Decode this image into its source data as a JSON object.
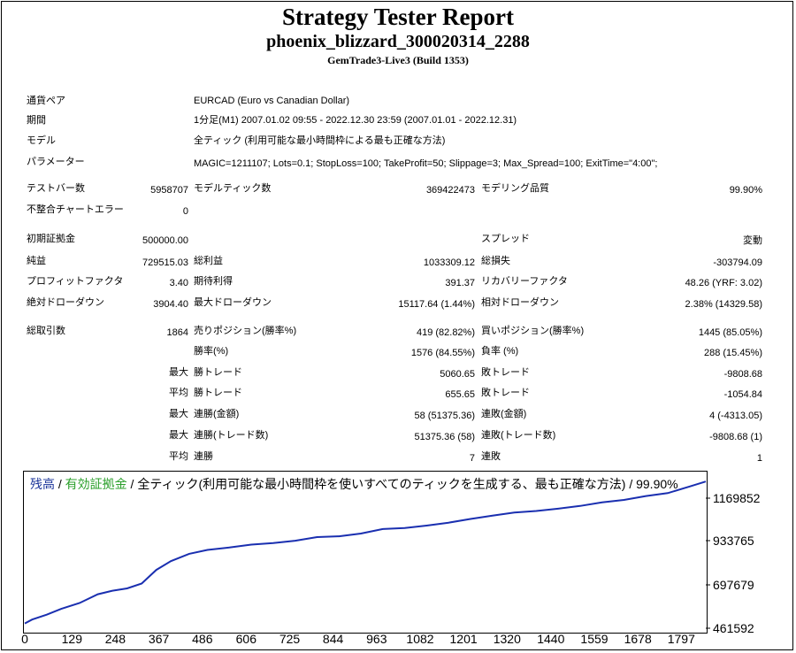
{
  "header": {
    "title": "Strategy Tester Report",
    "ea_name": "phoenix_blizzard_300020314_2288",
    "server": "GemTrade3-Live3 (Build 1353)"
  },
  "info": {
    "symbol_label": "通貨ペア",
    "symbol_value": "EURCAD (Euro vs Canadian Dollar)",
    "period_label": "期間",
    "period_value": "1分足(M1) 2007.01.02 09:55 - 2022.12.30 23:59 (2007.01.01 - 2022.12.31)",
    "model_label": "モデル",
    "model_value": "全ティック (利用可能な最小時間枠による最も正確な方法)",
    "params_label": "パラメーター",
    "params_value": "MAGIC=1211107; Lots=0.1; StopLoss=100; TakeProfit=50; Slippage=3; Max_Spread=100; ExitTime=\"4:00\";"
  },
  "stats": {
    "bars_label": "テストバー数",
    "bars_value": "5958707",
    "ticks_label": "モデルティック数",
    "ticks_value": "369422473",
    "quality_label": "モデリング品質",
    "quality_value": "99.90%",
    "mismatch_label": "不整合チャートエラー",
    "mismatch_value": "0",
    "deposit_label": "初期証拠金",
    "deposit_value": "500000.00",
    "spread_label": "スプレッド",
    "spread_value": "変動",
    "net_label": "純益",
    "net_value": "729515.03",
    "gross_profit_label": "総利益",
    "gross_profit_value": "1033309.12",
    "gross_loss_label": "総損失",
    "gross_loss_value": "-303794.09",
    "pf_label": "プロフィットファクタ",
    "pf_value": "3.40",
    "expected_label": "期待利得",
    "expected_value": "391.37",
    "recovery_label": "リカバリーファクタ",
    "recovery_value": "48.26 (YRF: 3.02)",
    "abs_dd_label": "絶対ドローダウン",
    "abs_dd_value": "3904.40",
    "max_dd_label": "最大ドローダウン",
    "max_dd_value": "15117.64 (1.44%)",
    "rel_dd_label": "相対ドローダウン",
    "rel_dd_value": "2.38% (14329.58)",
    "trades_label": "総取引数",
    "trades_value": "1864",
    "short_label": "売りポジション(勝率%)",
    "short_value": "419 (82.82%)",
    "long_label": "買いポジション(勝率%)",
    "long_value": "1445 (85.05%)",
    "win_pct_label": "勝率(%)",
    "win_pct_value": "1576 (84.55%)",
    "loss_pct_label": "負率 (%)",
    "loss_pct_value": "288 (15.45%)",
    "max_prefix": "最大",
    "avg_prefix": "平均",
    "largest_win_label": "勝トレード",
    "largest_win_value": "5060.65",
    "largest_loss_label": "敗トレード",
    "largest_loss_value": "-9808.68",
    "avg_win_label": "勝トレード",
    "avg_win_value": "655.65",
    "avg_loss_label": "敗トレード",
    "avg_loss_value": "-1054.84",
    "max_cons_win_label": "連勝(金額)",
    "max_cons_win_value": "58 (51375.36)",
    "max_cons_loss_label": "連敗(金額)",
    "max_cons_loss_value": "4 (-4313.05)",
    "max_cons_profit_label": "連勝(トレード数)",
    "max_cons_profit_value": "51375.36 (58)",
    "max_cons_lossamt_label": "連敗(トレード数)",
    "max_cons_lossamt_value": "-9808.68 (1)",
    "avg_cons_win_label": "連勝",
    "avg_cons_win_value": "7",
    "avg_cons_loss_label": "連敗",
    "avg_cons_loss_value": "1"
  },
  "chart_data": {
    "type": "line",
    "legend_balance": "残高",
    "legend_sep1": " / ",
    "legend_equity": "有効証拠金",
    "legend_rest": " / 全ティック(利用可能な最小時間枠を使いすべてのティックを生成する、最も正確な方法) / 99.90%",
    "colors": {
      "balance": "#1a2fb0",
      "equity": "#2ca02c"
    },
    "y_ticks": [
      "1169852",
      "933765",
      "697679",
      "461592"
    ],
    "x_ticks": [
      "0",
      "129",
      "248",
      "367",
      "486",
      "606",
      "725",
      "844",
      "963",
      "1082",
      "1201",
      "1320",
      "1440",
      "1559",
      "1678",
      "1797"
    ],
    "xlim": [
      0,
      1864
    ],
    "ylim": [
      461592,
      1248548
    ],
    "series": [
      {
        "name": "残高",
        "x": [
          0,
          20,
          60,
          100,
          150,
          200,
          240,
          280,
          320,
          360,
          400,
          450,
          500,
          560,
          620,
          680,
          740,
          800,
          860,
          920,
          980,
          1040,
          1100,
          1160,
          1220,
          1280,
          1340,
          1400,
          1460,
          1520,
          1580,
          1640,
          1700,
          1760,
          1820,
          1864
        ],
        "y": [
          500000,
          520000,
          545000,
          575000,
          605000,
          650000,
          668000,
          680000,
          705000,
          775000,
          820000,
          858000,
          878000,
          890000,
          905000,
          913000,
          925000,
          944000,
          948000,
          962000,
          985000,
          990000,
          1003000,
          1018000,
          1037000,
          1054000,
          1070000,
          1078000,
          1090000,
          1104000,
          1122000,
          1135000,
          1155000,
          1170000,
          1204000,
          1229515
        ]
      }
    ]
  }
}
